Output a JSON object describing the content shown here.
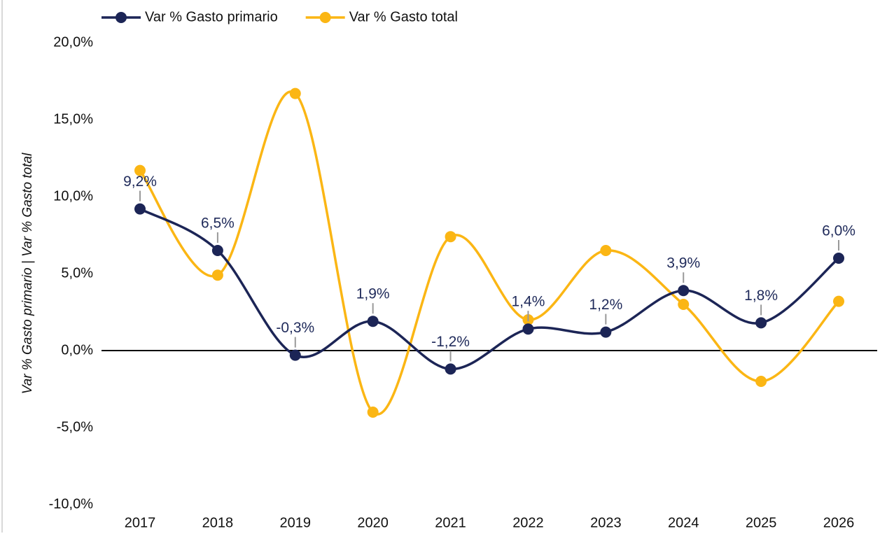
{
  "chart_data": {
    "type": "line",
    "y_label": "Var % Gasto primario | Var % Gasto total",
    "categories": [
      "2017",
      "2018",
      "2019",
      "2020",
      "2021",
      "2022",
      "2023",
      "2024",
      "2025",
      "2026"
    ],
    "series": [
      {
        "name": "Var % Gasto primario",
        "color": "#1c2556",
        "values": [
          9.2,
          6.5,
          -0.3,
          1.9,
          -1.2,
          1.4,
          1.2,
          3.9,
          1.8,
          6.0
        ],
        "value_labels": [
          "9,2%",
          "6,5%",
          "-0,3%",
          "1,9%",
          "-1,2%",
          "1,4%",
          "1,2%",
          "3,9%",
          "1,8%",
          "6,0%"
        ]
      },
      {
        "name": "Var % Gasto total",
        "color": "#fbb614",
        "values": [
          11.7,
          4.9,
          16.7,
          -4.0,
          7.4,
          2.0,
          6.5,
          3.0,
          -2.0,
          3.2
        ]
      }
    ],
    "ylim": [
      -10,
      20
    ],
    "yticks": [
      {
        "value": 20,
        "label": "20,0%"
      },
      {
        "value": 15,
        "label": "15,0%"
      },
      {
        "value": 10,
        "label": "10,0%"
      },
      {
        "value": 5,
        "label": "5,0%"
      },
      {
        "value": 0,
        "label": "0,0%"
      },
      {
        "value": -5,
        "label": "-5,0%"
      },
      {
        "value": -10,
        "label": "-10,0%"
      }
    ],
    "legend": "top-left",
    "smooth": true
  }
}
